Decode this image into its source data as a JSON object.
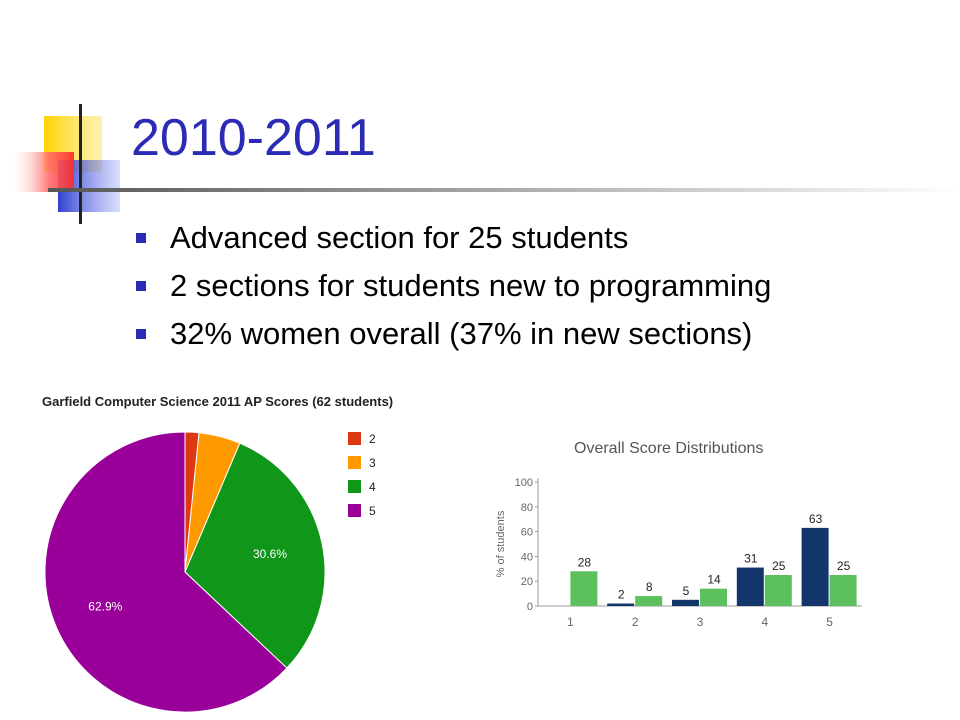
{
  "slide": {
    "title": "2010-2011",
    "bullets": [
      "Advanced section for 25 students",
      "2 sections for students new to programming",
      "32% women overall (37% in new sections)"
    ],
    "accent_color": "#2b2bb5"
  },
  "chart_data": [
    {
      "type": "pie",
      "title": "Garfield Computer Science 2011 AP Scores (62 students)",
      "slices": [
        {
          "label": "2",
          "percent": 1.6,
          "color": "#dc3912"
        },
        {
          "label": "3",
          "percent": 4.8,
          "color": "#ff9900"
        },
        {
          "label": "4",
          "percent": 30.6,
          "color": "#109618"
        },
        {
          "label": "5",
          "percent": 62.9,
          "color": "#990099"
        }
      ],
      "slice_labels_shown": [
        "30.6%",
        "62.9%"
      ],
      "legend_position": "right"
    },
    {
      "type": "bar",
      "title": "Overall Score Distributions",
      "categories": [
        "1",
        "2",
        "3",
        "4",
        "5"
      ],
      "series": [
        {
          "values": [
            0,
            2,
            5,
            31,
            63
          ],
          "labels": [
            "",
            "2",
            "5",
            "31",
            "63"
          ],
          "color": "#12366b"
        },
        {
          "values": [
            28,
            8,
            14,
            25,
            25
          ],
          "labels": [
            "28",
            "8",
            "14",
            "25",
            "25"
          ],
          "color": "#5cc15c"
        }
      ],
      "ylabel": "% of students",
      "yticks": [
        0,
        20,
        40,
        60,
        80,
        100
      ],
      "ylim": [
        0,
        100
      ],
      "grid": false
    }
  ]
}
